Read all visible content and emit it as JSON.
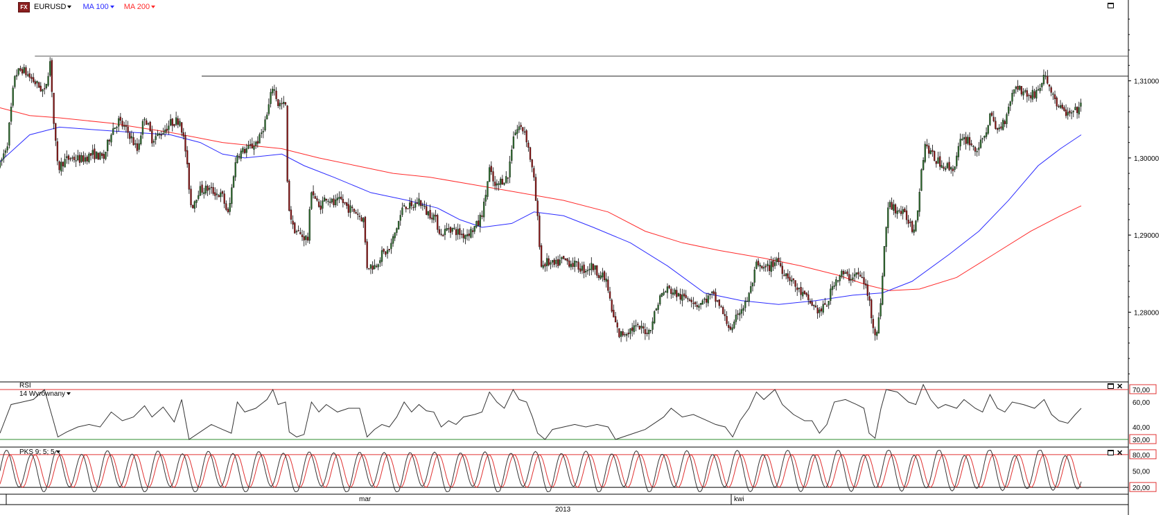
{
  "header": {
    "symbol": "EURUSD",
    "fx_badge": "FX",
    "ma100_label": "MA 100",
    "ma200_label": "MA 200",
    "ma100_color": "#2a2aff",
    "ma200_color": "#ff2a2a"
  },
  "rsi_panel": {
    "title": "RSI",
    "subtitle": "14 Wyrównany",
    "ticks": [
      "70,00",
      "60,00",
      "40,00",
      "30,00"
    ],
    "overbought_color": "#e03030",
    "oversold_color": "#2e8b2e"
  },
  "pks_panel": {
    "title": "PKS 9; 5; 5",
    "ticks": [
      "80,00",
      "50,00",
      "20,00"
    ]
  },
  "price_axis": {
    "ticks": [
      "1,31000",
      "1,30000",
      "1,29000",
      "1,28000"
    ]
  },
  "time_axis": {
    "month_labels": [
      "mar",
      "kwi"
    ],
    "year_label": "2013"
  },
  "chart_data": {
    "type": "candlestick",
    "symbol": "EURUSD",
    "ylim": [
      1.2715,
      1.3185
    ],
    "y_ticks": [
      1.31,
      1.3,
      1.29,
      1.28
    ],
    "resistance_lines": [
      1.3132,
      1.3106
    ],
    "candle_color_up": "#2e6b2e",
    "candle_color_down": "#8b1a1a",
    "price_path": [
      [
        0,
        1.299
      ],
      [
        10,
        1.302
      ],
      [
        20,
        1.3108
      ],
      [
        30,
        1.3115
      ],
      [
        45,
        1.31
      ],
      [
        60,
        1.3085
      ],
      [
        68,
        1.3128
      ],
      [
        72,
        1.305
      ],
      [
        78,
        1.2985
      ],
      [
        85,
        1.2995
      ],
      [
        95,
        1.3
      ],
      [
        110,
        1.2998
      ],
      [
        125,
        1.3005
      ],
      [
        140,
        1.3
      ],
      [
        150,
        1.3035
      ],
      [
        160,
        1.3048
      ],
      [
        175,
        1.303
      ],
      [
        185,
        1.301
      ],
      [
        195,
        1.3055
      ],
      [
        205,
        1.3025
      ],
      [
        215,
        1.303
      ],
      [
        230,
        1.3045
      ],
      [
        243,
        1.305
      ],
      [
        250,
        1.301
      ],
      [
        258,
        1.2935
      ],
      [
        268,
        1.2958
      ],
      [
        280,
        1.296
      ],
      [
        290,
        1.2955
      ],
      [
        300,
        1.295
      ],
      [
        308,
        1.2925
      ],
      [
        315,
        1.298
      ],
      [
        320,
        1.3005
      ],
      [
        330,
        1.301
      ],
      [
        340,
        1.3015
      ],
      [
        350,
        1.3025
      ],
      [
        360,
        1.3055
      ],
      [
        368,
        1.3095
      ],
      [
        375,
        1.307
      ],
      [
        385,
        1.3068
      ],
      [
        388,
        1.2945
      ],
      [
        395,
        1.291
      ],
      [
        405,
        1.29
      ],
      [
        415,
        1.2895
      ],
      [
        420,
        1.296
      ],
      [
        430,
        1.2935
      ],
      [
        440,
        1.295
      ],
      [
        450,
        1.294
      ],
      [
        460,
        1.2945
      ],
      [
        470,
        1.2935
      ],
      [
        480,
        1.293
      ],
      [
        490,
        1.292
      ],
      [
        495,
        1.286
      ],
      [
        505,
        1.286
      ],
      [
        515,
        1.2875
      ],
      [
        525,
        1.288
      ],
      [
        535,
        1.291
      ],
      [
        545,
        1.294
      ],
      [
        555,
        1.2935
      ],
      [
        565,
        1.2945
      ],
      [
        575,
        1.293
      ],
      [
        585,
        1.2925
      ],
      [
        595,
        1.29
      ],
      [
        605,
        1.291
      ],
      [
        615,
        1.2905
      ],
      [
        625,
        1.29
      ],
      [
        635,
        1.2905
      ],
      [
        645,
        1.2915
      ],
      [
        652,
        1.2935
      ],
      [
        660,
        1.2985
      ],
      [
        668,
        1.296
      ],
      [
        675,
        1.297
      ],
      [
        685,
        1.2975
      ],
      [
        692,
        1.303
      ],
      [
        700,
        1.304
      ],
      [
        708,
        1.3035
      ],
      [
        715,
        1.3
      ],
      [
        720,
        1.297
      ],
      [
        725,
        1.292
      ],
      [
        730,
        1.286
      ],
      [
        738,
        1.2865
      ],
      [
        748,
        1.286
      ],
      [
        758,
        1.2868
      ],
      [
        768,
        1.2865
      ],
      [
        778,
        1.286
      ],
      [
        788,
        1.2855
      ],
      [
        798,
        1.286
      ],
      [
        808,
        1.285
      ],
      [
        818,
        1.284
      ],
      [
        825,
        1.28
      ],
      [
        835,
        1.277
      ],
      [
        845,
        1.2775
      ],
      [
        855,
        1.278
      ],
      [
        865,
        1.2778
      ],
      [
        875,
        1.2775
      ],
      [
        880,
        1.279
      ],
      [
        890,
        1.282
      ],
      [
        900,
        1.283
      ],
      [
        910,
        1.2825
      ],
      [
        920,
        1.2818
      ],
      [
        930,
        1.282
      ],
      [
        940,
        1.281
      ],
      [
        950,
        1.2815
      ],
      [
        960,
        1.2822
      ],
      [
        970,
        1.281
      ],
      [
        978,
        1.279
      ],
      [
        988,
        1.2775
      ],
      [
        995,
        1.28
      ],
      [
        1005,
        1.281
      ],
      [
        1012,
        1.2828
      ],
      [
        1020,
        1.286
      ],
      [
        1030,
        1.2855
      ],
      [
        1040,
        1.286
      ],
      [
        1048,
        1.287
      ],
      [
        1055,
        1.2855
      ],
      [
        1065,
        1.2845
      ],
      [
        1075,
        1.283
      ],
      [
        1085,
        1.282
      ],
      [
        1095,
        1.281
      ],
      [
        1105,
        1.28
      ],
      [
        1115,
        1.281
      ],
      [
        1125,
        1.284
      ],
      [
        1135,
        1.285
      ],
      [
        1145,
        1.2845
      ],
      [
        1155,
        1.285
      ],
      [
        1165,
        1.284
      ],
      [
        1172,
        1.2815
      ],
      [
        1178,
        1.278
      ],
      [
        1183,
        1.277
      ],
      [
        1188,
        1.282
      ],
      [
        1193,
        1.289
      ],
      [
        1198,
        1.294
      ],
      [
        1205,
        1.2935
      ],
      [
        1215,
        1.293
      ],
      [
        1225,
        1.292
      ],
      [
        1232,
        1.2905
      ],
      [
        1238,
        1.294
      ],
      [
        1243,
        1.299
      ],
      [
        1248,
        1.302
      ],
      [
        1255,
        1.3005
      ],
      [
        1265,
        1.2995
      ],
      [
        1275,
        1.299
      ],
      [
        1285,
        1.2985
      ],
      [
        1295,
        1.302
      ],
      [
        1305,
        1.3025
      ],
      [
        1315,
        1.301
      ],
      [
        1325,
        1.302
      ],
      [
        1335,
        1.3055
      ],
      [
        1345,
        1.3035
      ],
      [
        1355,
        1.305
      ],
      [
        1362,
        1.3075
      ],
      [
        1370,
        1.3095
      ],
      [
        1380,
        1.3085
      ],
      [
        1390,
        1.308
      ],
      [
        1400,
        1.3088
      ],
      [
        1408,
        1.3105
      ],
      [
        1413,
        1.3098
      ],
      [
        1420,
        1.308
      ],
      [
        1428,
        1.3065
      ],
      [
        1435,
        1.306
      ],
      [
        1442,
        1.3055
      ],
      [
        1450,
        1.306
      ],
      [
        1458,
        1.307
      ]
    ],
    "ma100": [
      [
        0,
        1.2995
      ],
      [
        40,
        1.303
      ],
      [
        80,
        1.304
      ],
      [
        150,
        1.3035
      ],
      [
        230,
        1.303
      ],
      [
        270,
        1.302
      ],
      [
        300,
        1.3005
      ],
      [
        330,
        1.3
      ],
      [
        380,
        1.3005
      ],
      [
        410,
        1.299
      ],
      [
        450,
        1.2975
      ],
      [
        500,
        1.2955
      ],
      [
        550,
        1.2945
      ],
      [
        590,
        1.2935
      ],
      [
        620,
        1.292
      ],
      [
        650,
        1.291
      ],
      [
        690,
        1.2915
      ],
      [
        720,
        1.293
      ],
      [
        760,
        1.2925
      ],
      [
        800,
        1.291
      ],
      [
        850,
        1.289
      ],
      [
        900,
        1.286
      ],
      [
        950,
        1.2825
      ],
      [
        1000,
        1.2815
      ],
      [
        1050,
        1.281
      ],
      [
        1100,
        1.2815
      ],
      [
        1150,
        1.2822
      ],
      [
        1190,
        1.2825
      ],
      [
        1230,
        1.284
      ],
      [
        1280,
        1.2875
      ],
      [
        1320,
        1.2905
      ],
      [
        1360,
        1.2945
      ],
      [
        1400,
        1.299
      ],
      [
        1430,
        1.3012
      ],
      [
        1458,
        1.303
      ]
    ],
    "ma200": [
      [
        0,
        1.3065
      ],
      [
        40,
        1.3055
      ],
      [
        80,
        1.3052
      ],
      [
        150,
        1.3045
      ],
      [
        230,
        1.3033
      ],
      [
        300,
        1.302
      ],
      [
        380,
        1.3012
      ],
      [
        430,
        1.3
      ],
      [
        480,
        1.299
      ],
      [
        530,
        1.298
      ],
      [
        580,
        1.2975
      ],
      [
        640,
        1.2965
      ],
      [
        700,
        1.2955
      ],
      [
        760,
        1.2945
      ],
      [
        820,
        1.293
      ],
      [
        870,
        1.2905
      ],
      [
        920,
        1.289
      ],
      [
        970,
        1.288
      ],
      [
        1030,
        1.287
      ],
      [
        1080,
        1.286
      ],
      [
        1130,
        1.2848
      ],
      [
        1170,
        1.2835
      ],
      [
        1200,
        1.2828
      ],
      [
        1240,
        1.283
      ],
      [
        1290,
        1.2845
      ],
      [
        1340,
        1.2875
      ],
      [
        1390,
        1.2905
      ],
      [
        1430,
        1.2925
      ],
      [
        1458,
        1.2938
      ]
    ],
    "rsi": {
      "ylim": [
        25,
        75
      ],
      "levels": [
        70,
        30
      ],
      "series": [
        [
          0,
          35
        ],
        [
          15,
          58
        ],
        [
          30,
          60
        ],
        [
          45,
          62
        ],
        [
          60,
          70
        ],
        [
          72,
          45
        ],
        [
          78,
          32
        ],
        [
          90,
          36
        ],
        [
          105,
          40
        ],
        [
          120,
          42
        ],
        [
          135,
          40
        ],
        [
          150,
          52
        ],
        [
          165,
          45
        ],
        [
          180,
          48
        ],
        [
          195,
          57
        ],
        [
          205,
          48
        ],
        [
          220,
          56
        ],
        [
          235,
          44
        ],
        [
          245,
          62
        ],
        [
          255,
          30
        ],
        [
          270,
          36
        ],
        [
          285,
          42
        ],
        [
          300,
          38
        ],
        [
          312,
          35
        ],
        [
          320,
          60
        ],
        [
          330,
          52
        ],
        [
          345,
          55
        ],
        [
          360,
          62
        ],
        [
          368,
          70
        ],
        [
          375,
          58
        ],
        [
          385,
          60
        ],
        [
          390,
          36
        ],
        [
          400,
          32
        ],
        [
          410,
          34
        ],
        [
          420,
          60
        ],
        [
          430,
          52
        ],
        [
          440,
          58
        ],
        [
          455,
          52
        ],
        [
          470,
          55
        ],
        [
          485,
          55
        ],
        [
          495,
          32
        ],
        [
          505,
          38
        ],
        [
          515,
          42
        ],
        [
          525,
          40
        ],
        [
          535,
          48
        ],
        [
          545,
          60
        ],
        [
          555,
          52
        ],
        [
          565,
          58
        ],
        [
          575,
          53
        ],
        [
          585,
          52
        ],
        [
          595,
          40
        ],
        [
          605,
          45
        ],
        [
          615,
          42
        ],
        [
          625,
          48
        ],
        [
          640,
          50
        ],
        [
          650,
          52
        ],
        [
          660,
          68
        ],
        [
          670,
          60
        ],
        [
          680,
          55
        ],
        [
          692,
          70
        ],
        [
          700,
          62
        ],
        [
          710,
          60
        ],
        [
          718,
          48
        ],
        [
          725,
          35
        ],
        [
          735,
          30
        ],
        [
          745,
          38
        ],
        [
          760,
          40
        ],
        [
          775,
          42
        ],
        [
          790,
          40
        ],
        [
          805,
          42
        ],
        [
          820,
          40
        ],
        [
          830,
          30
        ],
        [
          840,
          32
        ],
        [
          855,
          35
        ],
        [
          870,
          38
        ],
        [
          885,
          44
        ],
        [
          895,
          48
        ],
        [
          905,
          55
        ],
        [
          920,
          48
        ],
        [
          935,
          50
        ],
        [
          950,
          46
        ],
        [
          965,
          42
        ],
        [
          978,
          40
        ],
        [
          988,
          32
        ],
        [
          998,
          45
        ],
        [
          1010,
          55
        ],
        [
          1020,
          68
        ],
        [
          1030,
          62
        ],
        [
          1045,
          70
        ],
        [
          1055,
          58
        ],
        [
          1070,
          50
        ],
        [
          1085,
          45
        ],
        [
          1095,
          45
        ],
        [
          1105,
          35
        ],
        [
          1115,
          42
        ],
        [
          1125,
          60
        ],
        [
          1140,
          62
        ],
        [
          1155,
          58
        ],
        [
          1165,
          55
        ],
        [
          1172,
          35
        ],
        [
          1180,
          31
        ],
        [
          1188,
          55
        ],
        [
          1195,
          70
        ],
        [
          1210,
          68
        ],
        [
          1225,
          60
        ],
        [
          1235,
          58
        ],
        [
          1245,
          74
        ],
        [
          1255,
          62
        ],
        [
          1265,
          55
        ],
        [
          1275,
          58
        ],
        [
          1290,
          55
        ],
        [
          1300,
          62
        ],
        [
          1315,
          55
        ],
        [
          1325,
          52
        ],
        [
          1335,
          66
        ],
        [
          1345,
          55
        ],
        [
          1355,
          52
        ],
        [
          1365,
          60
        ],
        [
          1380,
          58
        ],
        [
          1395,
          55
        ],
        [
          1408,
          62
        ],
        [
          1418,
          50
        ],
        [
          1428,
          45
        ],
        [
          1440,
          43
        ],
        [
          1450,
          50
        ],
        [
          1458,
          55
        ]
      ]
    },
    "stochastic": {
      "ylim": [
        10,
        90
      ],
      "levels": [
        80,
        20
      ],
      "period": 34,
      "k_amplitude": 34,
      "d_lag": 5
    }
  }
}
